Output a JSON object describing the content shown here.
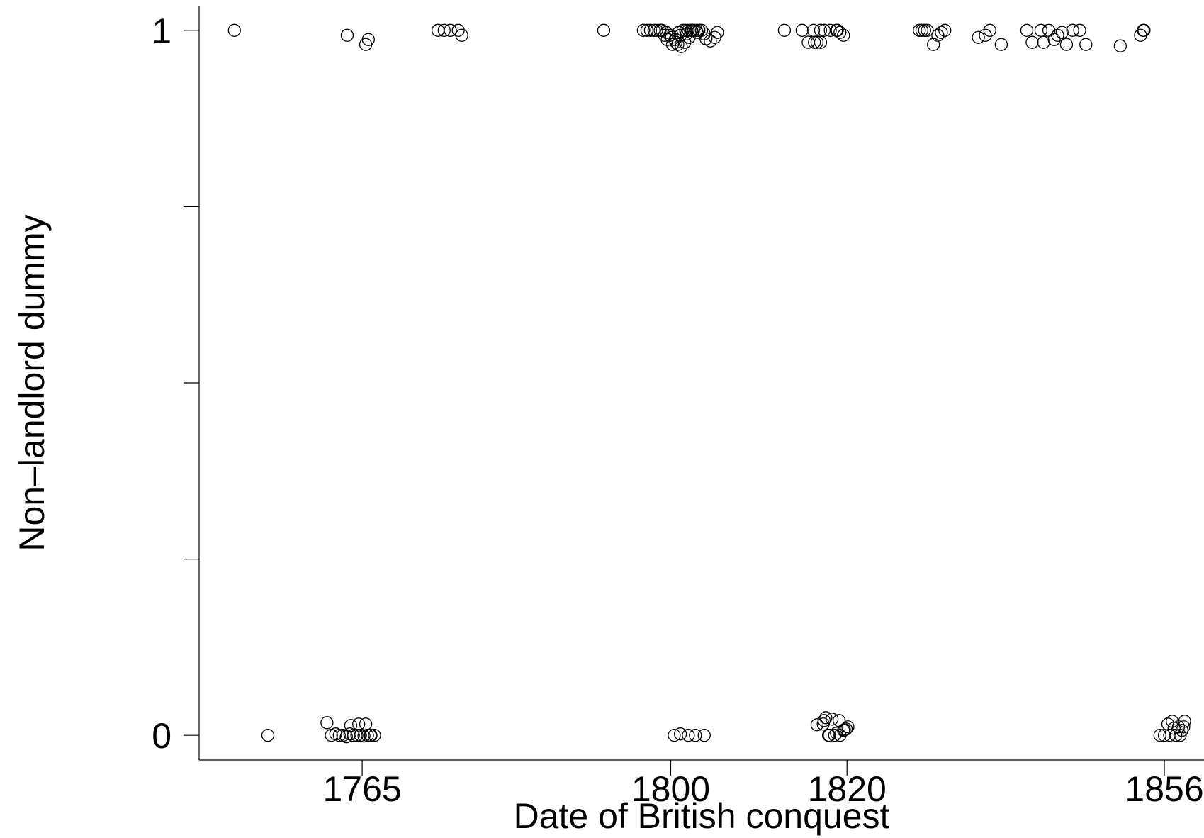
{
  "chart_data": {
    "type": "scatter",
    "title": "",
    "xlabel": "Date of British conquest",
    "ylabel": "Non–landlord dummy",
    "xlim": [
      1746.5,
      1860.5
    ],
    "ylim": [
      -0.035,
      1.035
    ],
    "x_ticks": [
      1765,
      1800,
      1820,
      1856
    ],
    "y_ticks": [
      0,
      0.25,
      0.5,
      0.75,
      1
    ],
    "y_tick_labels": [
      "0",
      "",
      "",
      "",
      "1"
    ],
    "grid": false,
    "legend": "none",
    "marker": "hollow-circle",
    "marker_color": "#000000",
    "series": [
      {
        "x": [
          1750.5,
          1763.3,
          1765.7,
          1765.4,
          1773.6,
          1774.3,
          1775.0,
          1775.9,
          1776.3,
          1792.4,
          1796.9,
          1797.3,
          1797.7,
          1798.1,
          1798.4,
          1798.8,
          1799.0,
          1799.3,
          1799.6,
          1799.9,
          1800.2,
          1800.5,
          1800.8,
          1801.1,
          1801.4,
          1801.7,
          1802.0,
          1802.3,
          1802.6,
          1802.9,
          1803.2,
          1803.5,
          1803.8,
          1799.5,
          1800.1,
          1800.6,
          1801.2,
          1801.8,
          1802.4,
          1803.0,
          1804.0,
          1804.5,
          1805.0,
          1805.3,
          1800.9,
          1801.6,
          1802.1,
          1812.9,
          1814.9,
          1815.6,
          1816.2,
          1816.6,
          1817.0,
          1817.4,
          1818.1,
          1818.8,
          1818.9,
          1819.2,
          1819.6,
          1816.3,
          1817.0,
          1828.2,
          1828.5,
          1828.8,
          1829.1,
          1829.8,
          1830.3,
          1831.1,
          1830.7,
          1834.9,
          1835.7,
          1836.2,
          1837.5,
          1840.4,
          1841.0,
          1842.0,
          1842.3,
          1842.9,
          1843.5,
          1843.9,
          1844.4,
          1844.9,
          1845.6,
          1846.4,
          1847.1,
          1851.0,
          1853.3,
          1853.6,
          1853.7,
          1861.4
        ],
        "y": [
          1,
          0.993,
          0.987,
          0.98,
          1,
          1,
          1,
          1,
          0.993,
          1,
          1,
          1,
          1,
          1,
          1,
          1,
          1,
          0.993,
          0.987,
          0.993,
          0.98,
          0.987,
          0.98,
          0.993,
          1,
          1,
          1,
          1,
          1,
          1,
          1,
          1,
          0.995,
          0.997,
          0.99,
          0.983,
          0.977,
          0.995,
          1,
          0.997,
          0.988,
          0.985,
          0.99,
          0.997,
          0.997,
          0.983,
          0.99,
          1,
          1,
          0.983,
          1,
          0.983,
          1,
          1,
          1,
          1,
          1,
          0.997,
          0.993,
          0.983,
          0.983,
          1,
          1,
          1,
          1,
          0.98,
          0.993,
          1,
          0.997,
          0.99,
          0.993,
          1,
          0.98,
          1,
          0.983,
          1,
          0.983,
          1,
          0.987,
          0.993,
          0.997,
          0.98,
          1,
          1,
          0.98,
          0.978,
          0.993,
          1,
          1,
          0.98
        ]
      },
      {
        "x": [
          1754.3,
          1761.0,
          1761.5,
          1762.0,
          1762.4,
          1762.8,
          1763.2,
          1763.6,
          1764.0,
          1764.4,
          1764.8,
          1765.2,
          1765.6,
          1766.0,
          1766.4,
          1763.7,
          1764.6,
          1765.4,
          1765.9,
          1800.4,
          1801.1,
          1802.0,
          1802.8,
          1803.8,
          1816.6,
          1817.4,
          1817.9,
          1818.3,
          1818.8,
          1819.2,
          1819.7,
          1820.1,
          1817.6,
          1818.0,
          1819.1,
          1819.9,
          1817.3,
          1818.6,
          1819.6,
          1855.5,
          1856.0,
          1856.4,
          1856.9,
          1857.3,
          1857.6,
          1858.0,
          1856.6,
          1857.8,
          1858.3,
          1857.1,
          1858.2
        ],
        "y": [
          0,
          0.018,
          0,
          0.002,
          0,
          0,
          -0.002,
          0.002,
          0,
          0,
          0,
          -0.001,
          0,
          0,
          0,
          0.014,
          0.016,
          0.016,
          0,
          0,
          0.002,
          0,
          0,
          0,
          0.015,
          0.021,
          0,
          0.023,
          0.003,
          0,
          0.008,
          0.012,
          0.025,
          0,
          0.021,
          0.009,
          0.016,
          0,
          0.007,
          0,
          0,
          0.016,
          0.02,
          0,
          0.012,
          0.007,
          0,
          0,
          0.02,
          0.01,
          0.012
        ]
      }
    ]
  }
}
